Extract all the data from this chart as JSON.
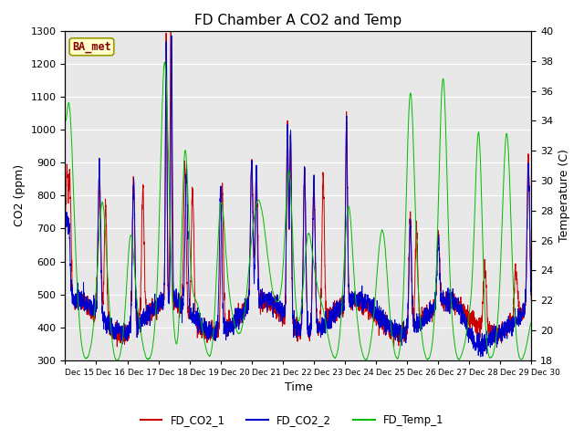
{
  "title": "FD Chamber A CO2 and Temp",
  "xlabel": "Time",
  "ylabel_left": "CO2 (ppm)",
  "ylabel_right": "Temperature (C)",
  "ylim_left": [
    300,
    1300
  ],
  "ylim_right": [
    18,
    40
  ],
  "yticks_left": [
    300,
    400,
    500,
    600,
    700,
    800,
    900,
    1000,
    1100,
    1200,
    1300
  ],
  "yticks_right": [
    18,
    20,
    22,
    24,
    26,
    28,
    30,
    32,
    34,
    36,
    38,
    40
  ],
  "legend_labels": [
    "FD_CO2_1",
    "FD_CO2_2",
    "FD_Temp_1"
  ],
  "legend_colors": [
    "#cc0000",
    "#0000cc",
    "#00bb00"
  ],
  "box_label": "BA_met",
  "box_facecolor": "#ffffcc",
  "box_edgecolor": "#999900",
  "background_color": "#e8e8e8",
  "xtick_labels": [
    "Dec 15",
    "Dec 16",
    "Dec 17",
    "Dec 18",
    "Dec 19",
    "Dec 20",
    "Dec 21",
    "Dec 22",
    "Dec 23",
    "Dec 24",
    "Dec 25",
    "Dec 26",
    "Dec 27",
    "Dec 28",
    "Dec 29",
    "Dec 30"
  ],
  "title_fontsize": 11,
  "axis_label_fontsize": 9,
  "tick_fontsize": 8
}
